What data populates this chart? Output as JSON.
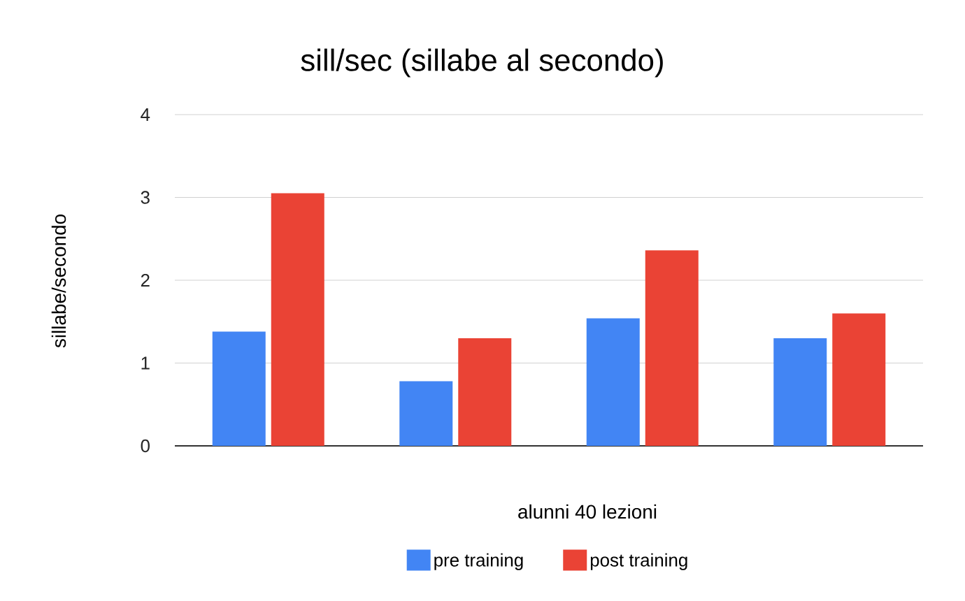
{
  "chart_data": {
    "type": "bar",
    "title": "sill/sec (sillabe al secondo)",
    "xlabel": "alunni 40 lezioni",
    "ylabel": "sillabe/secondo",
    "categories": [
      null,
      null,
      null,
      null
    ],
    "series": [
      {
        "name": "pre training",
        "color": "#4285f4",
        "values": [
          1.38,
          0.78,
          1.54,
          1.3
        ]
      },
      {
        "name": "post training",
        "color": "#ea4335",
        "values": [
          3.05,
          1.3,
          2.36,
          1.6
        ]
      }
    ],
    "ylim": [
      0,
      4
    ],
    "yticks": [
      0,
      1,
      2,
      3,
      4
    ],
    "grid": "y",
    "legend": "bottom"
  }
}
